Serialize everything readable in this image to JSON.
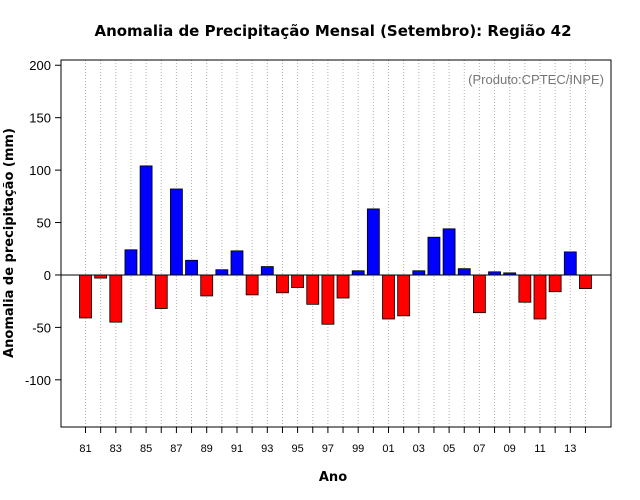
{
  "chart_data": {
    "type": "bar",
    "title": "Anomalia de Precipitação Mensal (Setembro): Região 42",
    "xlabel": "Ano",
    "ylabel": "Anomalia de precipitação (mm)",
    "annotation": "(Produto:CPTEC/INPE)",
    "ylim": [
      -145,
      205
    ],
    "y_ticks": [
      -100,
      -50,
      0,
      50,
      100,
      150,
      200
    ],
    "grid": "vertical dotted",
    "categories": [
      "81",
      "82",
      "83",
      "84",
      "85",
      "86",
      "87",
      "88",
      "89",
      "90",
      "91",
      "92",
      "93",
      "94",
      "95",
      "96",
      "97",
      "98",
      "99",
      "00",
      "01",
      "02",
      "03",
      "04",
      "05",
      "06",
      "07",
      "08",
      "09",
      "10",
      "11",
      "12",
      "13",
      "14"
    ],
    "x_tick_labels": [
      "81",
      "83",
      "85",
      "87",
      "89",
      "91",
      "93",
      "95",
      "97",
      "99",
      "01",
      "03",
      "05",
      "07",
      "09",
      "11",
      "13"
    ],
    "values": [
      -41,
      -3,
      -45,
      24,
      104,
      -32,
      82,
      14,
      -20,
      5,
      23,
      -19,
      8,
      -17,
      -12,
      -28,
      -47,
      -22,
      4,
      63,
      -42,
      -39,
      4,
      36,
      44,
      6,
      -36,
      3,
      2,
      -26,
      -42,
      -16,
      22,
      -13
    ],
    "colors": {
      "positive": "#0000ff",
      "negative": "#ff0000",
      "axis": "#000000",
      "grid": "#b0b0b0"
    }
  }
}
